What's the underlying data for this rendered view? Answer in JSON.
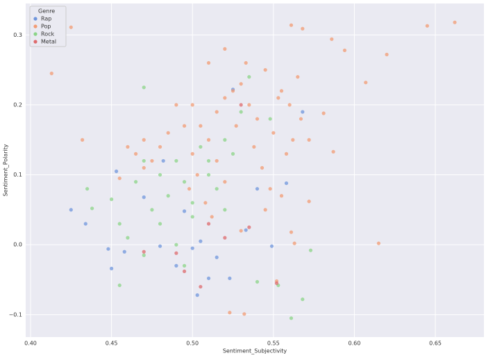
{
  "chart_data": {
    "type": "scatter",
    "xlabel": "Sentiment_Subjectivity",
    "ylabel": "Sentiment_Polarity",
    "legend_title": "Genre",
    "legend_position": "upper-left",
    "grid": true,
    "xlim": [
      0.397,
      0.68
    ],
    "ylim": [
      -0.132,
      0.345
    ],
    "xticks": [
      {
        "value": 0.4,
        "label": "0.40"
      },
      0.45,
      {
        "value": 0.5,
        "label": "0.50"
      },
      0.55,
      {
        "value": 0.6,
        "label": "0.60"
      },
      0.65
    ],
    "yticks": [
      {
        "value": -0.1,
        "label": "−0.1"
      },
      {
        "value": 0,
        "label": "0.0"
      },
      0.1,
      0.2,
      0.3
    ],
    "series": [
      {
        "name": "Rap",
        "color": "#6f95dc",
        "x": [
          0.425,
          0.434,
          0.453,
          0.448,
          0.45,
          0.458,
          0.47,
          0.48,
          0.49,
          0.5,
          0.503,
          0.505,
          0.51,
          0.515,
          0.523,
          0.525,
          0.533,
          0.54,
          0.549,
          0.558,
          0.568,
          0.495,
          0.482
        ],
        "values": [
          0.05,
          0.03,
          0.105,
          -0.006,
          -0.034,
          -0.01,
          0.068,
          -0.002,
          -0.03,
          -0.005,
          -0.072,
          0.005,
          -0.048,
          -0.018,
          -0.048,
          0.222,
          0.021,
          0.08,
          -0.002,
          0.088,
          0.19,
          0.048,
          0.12
        ]
      },
      {
        "name": "Pop",
        "color": "#f29b73",
        "x": [
          0.413,
          0.425,
          0.432,
          0.645,
          0.662,
          0.62,
          0.615,
          0.607,
          0.568,
          0.561,
          0.586,
          0.594,
          0.581,
          0.587,
          0.572,
          0.523,
          0.532,
          0.552,
          0.563,
          0.561,
          0.505,
          0.51,
          0.515,
          0.52,
          0.525,
          0.53,
          0.535,
          0.54,
          0.545,
          0.55,
          0.555,
          0.56,
          0.565,
          0.49,
          0.495,
          0.5,
          0.485,
          0.48,
          0.475,
          0.47,
          0.515,
          0.52,
          0.527,
          0.533,
          0.538,
          0.543,
          0.548,
          0.553,
          0.558,
          0.562,
          0.508,
          0.512,
          0.498,
          0.503,
          0.47,
          0.465,
          0.46,
          0.455,
          0.53,
          0.545,
          0.555,
          0.567,
          0.572,
          0.52,
          0.51,
          0.5
        ],
        "values": [
          0.245,
          0.311,
          0.15,
          0.313,
          0.318,
          0.272,
          0.002,
          0.232,
          0.309,
          0.314,
          0.294,
          0.278,
          0.188,
          0.133,
          0.062,
          -0.097,
          -0.099,
          -0.052,
          0.002,
          0.018,
          0.17,
          0.15,
          0.19,
          0.21,
          0.22,
          0.23,
          0.2,
          0.18,
          0.25,
          0.16,
          0.22,
          0.2,
          0.24,
          0.2,
          0.17,
          0.13,
          0.16,
          0.14,
          0.12,
          0.11,
          0.12,
          0.09,
          0.17,
          0.26,
          0.14,
          0.11,
          0.08,
          0.21,
          0.13,
          0.15,
          0.06,
          0.04,
          0.08,
          0.1,
          0.15,
          0.13,
          0.14,
          0.095,
          0.02,
          0.05,
          0.07,
          0.18,
          0.15,
          0.28,
          0.26,
          0.2
        ]
      },
      {
        "name": "Rock",
        "color": "#8bd487",
        "x": [
          0.47,
          0.465,
          0.45,
          0.435,
          0.438,
          0.455,
          0.46,
          0.47,
          0.475,
          0.48,
          0.485,
          0.49,
          0.495,
          0.5,
          0.505,
          0.51,
          0.515,
          0.52,
          0.525,
          0.53,
          0.535,
          0.54,
          0.548,
          0.553,
          0.561,
          0.568,
          0.573,
          0.49,
          0.48,
          0.5,
          0.51,
          0.52,
          0.455,
          0.47,
          0.495
        ],
        "values": [
          0.225,
          0.09,
          0.065,
          0.08,
          0.052,
          -0.058,
          0.01,
          -0.015,
          0.05,
          0.1,
          0.07,
          0.12,
          0.09,
          0.06,
          0.14,
          0.1,
          0.08,
          0.05,
          0.13,
          0.19,
          0.24,
          -0.053,
          0.18,
          -0.058,
          -0.105,
          -0.078,
          -0.008,
          0.0,
          0.03,
          0.04,
          0.12,
          0.15,
          0.03,
          0.12,
          -0.03
        ]
      },
      {
        "name": "Metal",
        "color": "#de6a6c",
        "x": [
          0.49,
          0.495,
          0.505,
          0.52,
          0.535,
          0.552,
          0.51,
          0.47,
          0.53
        ],
        "values": [
          -0.012,
          -0.038,
          -0.06,
          0.01,
          0.025,
          -0.055,
          0.03,
          -0.01,
          0.2
        ]
      }
    ]
  }
}
